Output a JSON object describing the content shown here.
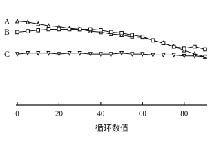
{
  "chart_data": {
    "type": "line",
    "x_label": "循环数值",
    "x": [
      0,
      5,
      10,
      15,
      20,
      25,
      30,
      35,
      40,
      45,
      50,
      55,
      60,
      65,
      70,
      75,
      80,
      85,
      90
    ],
    "series": [
      {
        "name": "A",
        "color": "#111111",
        "marker": "triangle",
        "values": [
          92,
          91,
          89,
          87,
          86,
          84,
          83,
          81,
          80,
          78,
          77,
          75,
          74,
          71,
          68,
          64,
          60,
          56,
          53
        ]
      },
      {
        "name": "B",
        "color": "#111111",
        "marker": "square",
        "values": [
          80,
          81,
          82,
          83,
          83,
          83,
          83,
          83,
          82,
          80,
          79,
          77,
          75,
          71,
          68,
          64,
          62,
          64,
          61
        ]
      },
      {
        "name": "C",
        "color": "#111111",
        "marker": "triangle-down",
        "values": [
          56,
          57,
          57,
          57,
          56,
          57,
          57,
          56,
          56,
          56,
          57,
          56,
          56,
          55,
          55,
          55,
          54,
          54,
          53
        ]
      }
    ],
    "xlim": [
      0,
      91
    ],
    "ylim": [
      0,
      100
    ],
    "xticks": [
      0,
      20,
      40,
      60,
      80
    ]
  }
}
